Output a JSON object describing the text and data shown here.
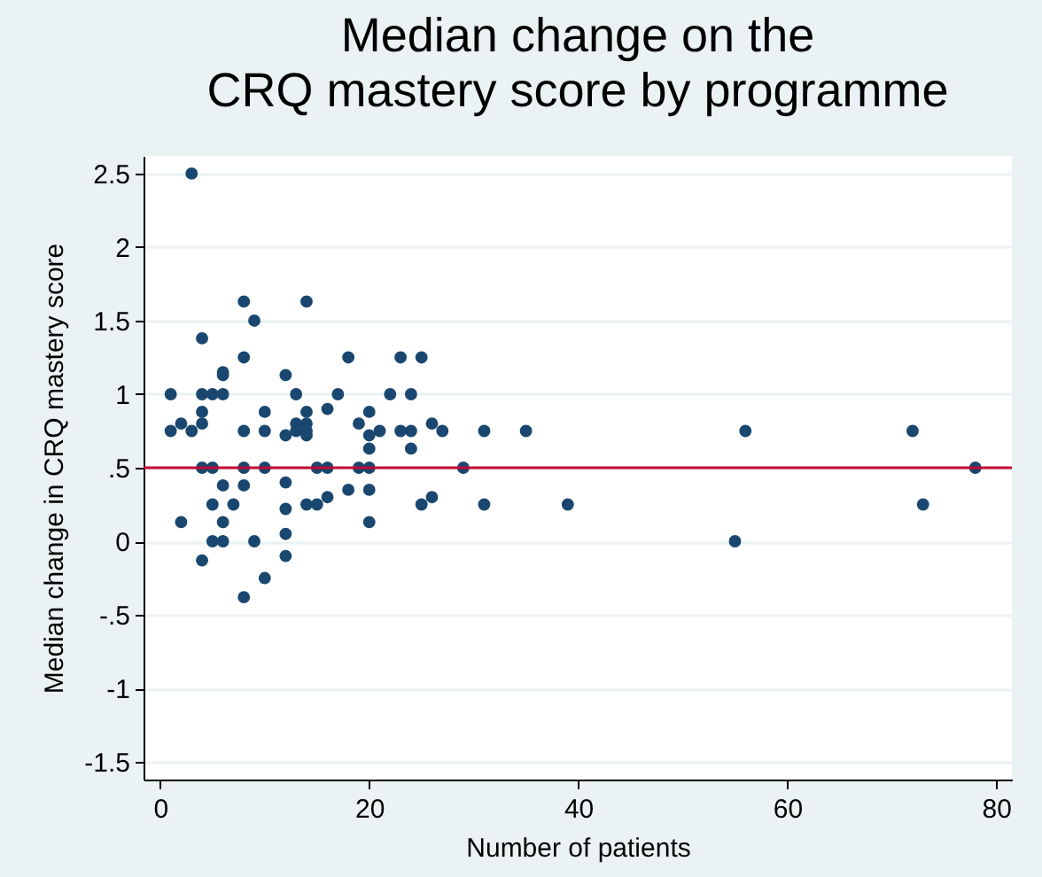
{
  "chart_data": {
    "type": "scatter",
    "title": "Median change on the\nCRQ mastery score by programme",
    "xlabel": "Number of patients",
    "ylabel": "Median change in CRQ mastery score",
    "x": [
      1,
      1,
      2,
      2,
      3,
      3,
      4,
      4,
      4,
      4,
      4,
      4,
      5,
      5,
      5,
      5,
      6,
      6,
      6,
      6,
      6,
      6,
      7,
      8,
      8,
      8,
      8,
      8,
      8,
      9,
      9,
      10,
      10,
      10,
      10,
      12,
      12,
      12,
      12,
      12,
      12,
      13,
      13,
      13,
      14,
      14,
      14,
      14,
      14,
      14,
      15,
      15,
      16,
      16,
      16,
      17,
      18,
      18,
      19,
      19,
      20,
      20,
      20,
      20,
      20,
      20,
      21,
      22,
      23,
      23,
      24,
      24,
      24,
      25,
      25,
      26,
      26,
      27,
      29,
      31,
      31,
      35,
      39,
      55,
      56,
      72,
      73,
      78
    ],
    "values": [
      1,
      0.75,
      0.8,
      0.13,
      2.5,
      0.75,
      1.38,
      1,
      0.88,
      0.8,
      0.5,
      -0.13,
      1,
      0.5,
      0.25,
      0,
      1.15,
      1.13,
      1,
      0.38,
      0.13,
      0,
      0.25,
      1.63,
      1.25,
      0.75,
      0.5,
      0.38,
      -0.38,
      1.5,
      0,
      0.88,
      0.75,
      0.5,
      -0.25,
      1.13,
      0.72,
      0.4,
      0.22,
      0.05,
      -0.1,
      1,
      0.8,
      0.75,
      1.63,
      0.88,
      0.8,
      0.75,
      0.72,
      0.25,
      0.5,
      0.25,
      0.9,
      0.5,
      0.3,
      1,
      1.25,
      0.35,
      0.8,
      0.5,
      0.88,
      0.72,
      0.63,
      0.5,
      0.35,
      0.13,
      0.75,
      1,
      1.25,
      0.75,
      1,
      0.75,
      0.63,
      1.25,
      0.25,
      0.8,
      0.3,
      0.75,
      0.5,
      0.75,
      0.25,
      0.75,
      0.25,
      0,
      0.75,
      0.75,
      0.25,
      0.5
    ],
    "color": "#1a476f",
    "marker": "circle",
    "xlim": [
      -1.6,
      81.5
    ],
    "xticks": [
      0,
      20,
      40,
      60,
      80
    ],
    "ylim": [
      -1.62,
      2.62
    ],
    "yticks": [
      -1.5,
      -1,
      {
        "value": -0.5,
        "label": "-.5"
      },
      0,
      {
        "value": 0.5,
        "label": ".5"
      },
      1,
      1.5,
      2,
      2.5
    ],
    "grid": "y",
    "ref_lines": [
      {
        "axis": "y",
        "value": 0.5,
        "color": "#c10534"
      }
    ]
  }
}
